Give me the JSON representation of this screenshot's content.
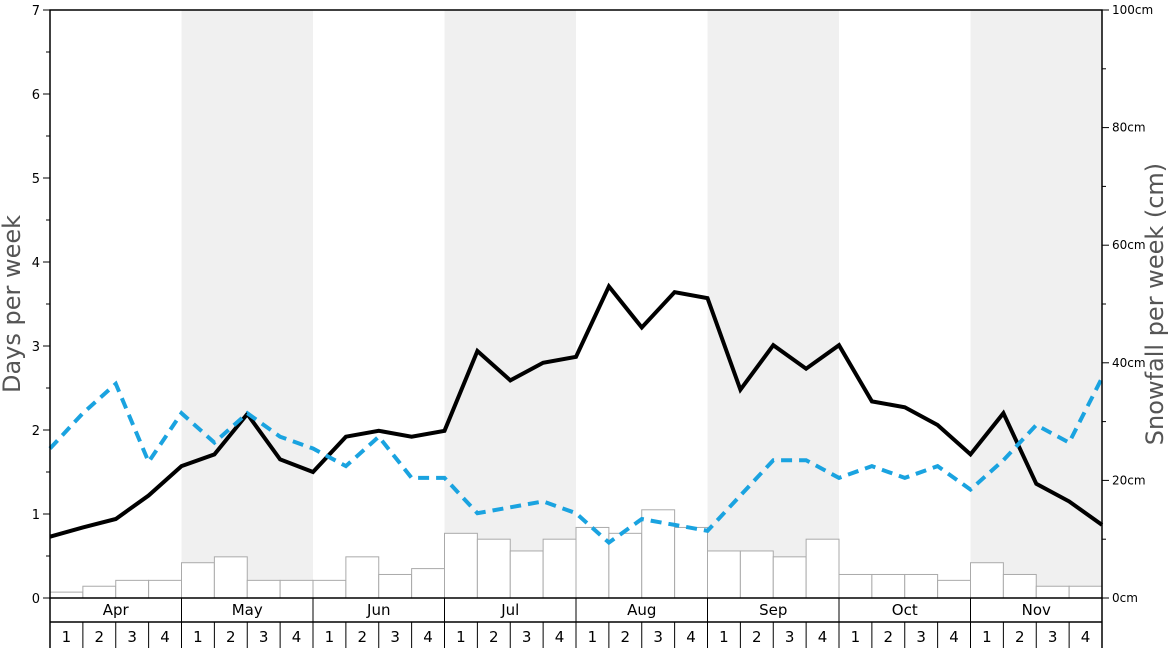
{
  "chart_data": {
    "type": "line",
    "title": "",
    "ylabel": "Days per week",
    "y2label": "Snowfall per week (cm)",
    "ylim": [
      0,
      7
    ],
    "y2lim": [
      0,
      100
    ],
    "y_ticks": [
      "0",
      "1",
      "2",
      "3",
      "4",
      "5",
      "6",
      "7"
    ],
    "y2_ticks": [
      "0cm",
      "20cm",
      "40cm",
      "60cm",
      "80cm",
      "100cm"
    ],
    "months": [
      "Apr",
      "May",
      "Jun",
      "Jul",
      "Aug",
      "Sep",
      "Oct",
      "Nov"
    ],
    "weeks": [
      "1",
      "2",
      "3",
      "4"
    ],
    "grid": false,
    "colors": {
      "solid_line": "#000000",
      "dashed_line": "#1aa3e0",
      "bar_stroke": "#aaaaaa",
      "band_shade": "#f0f0f0"
    },
    "series": [
      {
        "type": "line",
        "style": "solid",
        "axis": "left",
        "values": [
          0.73,
          0.84,
          0.94,
          1.22,
          1.57,
          1.71,
          2.19,
          1.65,
          1.5,
          1.92,
          1.99,
          1.92,
          1.99,
          2.94,
          2.59,
          2.8,
          2.87,
          3.71,
          3.22,
          3.64,
          3.57,
          2.48,
          3.01,
          2.73,
          3.01,
          2.34,
          2.27,
          2.06,
          1.71,
          2.2,
          1.36,
          1.15,
          0.87
        ]
      },
      {
        "type": "line",
        "style": "dashed",
        "axis": "left",
        "values": [
          1.78,
          2.2,
          2.55,
          1.62,
          2.2,
          1.85,
          2.2,
          1.92,
          1.78,
          1.57,
          1.92,
          1.43,
          1.43,
          1.01,
          1.08,
          1.15,
          1.01,
          0.66,
          0.94,
          0.87,
          0.8,
          1.22,
          1.64,
          1.64,
          1.43,
          1.57,
          1.43,
          1.57,
          1.29,
          1.64,
          2.06,
          1.85,
          2.62
        ]
      },
      {
        "type": "bar",
        "axis": "right",
        "values": [
          1,
          2,
          3,
          3,
          6,
          7,
          3,
          3,
          3,
          7,
          4,
          5,
          11,
          10,
          8,
          10,
          12,
          11,
          15,
          12,
          8,
          8,
          7,
          10,
          4,
          4,
          4,
          3,
          6,
          4,
          2,
          2
        ]
      }
    ]
  }
}
